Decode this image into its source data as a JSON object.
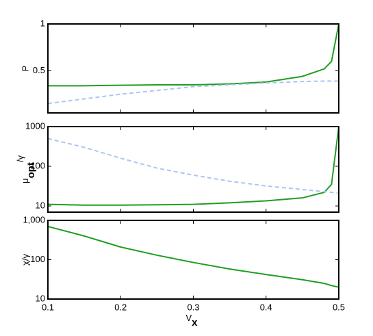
{
  "chart_data": [
    {
      "type": "line",
      "y_label": "P",
      "x": [
        0.1,
        0.15,
        0.2,
        0.25,
        0.3,
        0.35,
        0.4,
        0.45,
        0.48,
        0.49,
        0.5
      ],
      "ylim": [
        0.05,
        1
      ],
      "yticks": [
        0.5,
        1
      ],
      "xlim": [
        0.1,
        0.5
      ],
      "series": [
        {
          "color": "#1f9e1f",
          "dashed": false,
          "values": [
            0.34,
            0.34,
            0.345,
            0.35,
            0.35,
            0.36,
            0.38,
            0.44,
            0.52,
            0.6,
            1
          ]
        },
        {
          "color": "#aac6f2",
          "dashed": true,
          "values": [
            0.15,
            0.2,
            0.25,
            0.29,
            0.33,
            0.35,
            0.37,
            0.385,
            0.39,
            0.39,
            0.39
          ]
        }
      ]
    },
    {
      "type": "line",
      "y_label": {
        "base": "μ",
        "sub": "opt",
        "rest": "/γ"
      },
      "log_scale": true,
      "x": [
        0.1,
        0.15,
        0.2,
        0.25,
        0.3,
        0.35,
        0.4,
        0.45,
        0.48,
        0.49,
        0.5
      ],
      "ylim": [
        7,
        1000
      ],
      "yticks": [
        10,
        100,
        1000
      ],
      "xlim": [
        0.1,
        0.5
      ],
      "series": [
        {
          "color": "#1f9e1f",
          "dashed": false,
          "values": [
            11,
            10.5,
            10.5,
            10.7,
            11,
            12,
            13.5,
            16,
            22,
            35,
            1000
          ]
        },
        {
          "color": "#aac6f2",
          "dashed": true,
          "values": [
            500,
            300,
            160,
            90,
            60,
            42,
            32,
            26,
            23,
            22,
            21
          ]
        }
      ]
    },
    {
      "type": "line",
      "y_label": "χ/γ",
      "log_scale": true,
      "x_label": {
        "base": "V",
        "sub": "x"
      },
      "x": [
        0.1,
        0.15,
        0.2,
        0.25,
        0.3,
        0.35,
        0.4,
        0.45,
        0.48,
        0.49,
        0.5
      ],
      "ylim": [
        10,
        1000
      ],
      "yticks": [
        10,
        100,
        {
          "value": 1000,
          "label": "1,000"
        }
      ],
      "xlim": [
        0.1,
        0.5
      ],
      "xticks": [
        0.1,
        0.2,
        0.3,
        0.4,
        0.5
      ],
      "series": [
        {
          "color": "#1f9e1f",
          "dashed": false,
          "values": [
            700,
            400,
            210,
            130,
            85,
            58,
            42,
            31,
            25,
            22,
            20
          ]
        }
      ]
    }
  ]
}
